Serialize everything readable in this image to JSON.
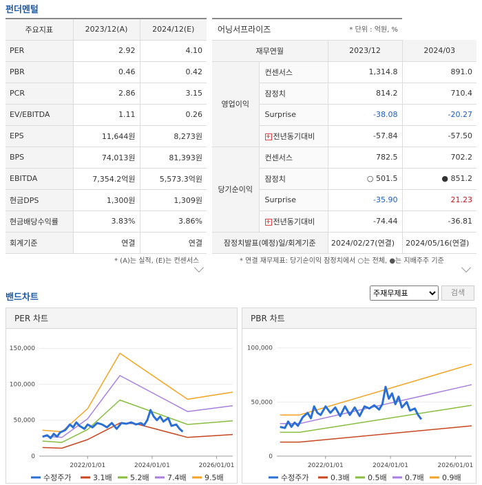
{
  "sections": {
    "fundamental": "펀더멘털",
    "band_chart": "밴드차트"
  },
  "indicators": {
    "headers": [
      "주요지표",
      "2023/12(A)",
      "2024/12(E)"
    ],
    "rows": [
      {
        "label": "PER",
        "v1": "2.92",
        "v2": "4.10"
      },
      {
        "label": "PBR",
        "v1": "0.46",
        "v2": "0.42"
      },
      {
        "label": "PCR",
        "v1": "2.86",
        "v2": "3.15"
      },
      {
        "label": "EV/EBITDA",
        "v1": "1.11",
        "v2": "0.26"
      },
      {
        "label": "EPS",
        "v1": "11,644원",
        "v2": "8,273원"
      },
      {
        "label": "BPS",
        "v1": "74,013원",
        "v2": "81,393원"
      },
      {
        "label": "EBITDA",
        "v1": "7,354.2억원",
        "v2": "5,573.3억원"
      },
      {
        "label": "현금DPS",
        "v1": "1,300원",
        "v2": "1,309원"
      },
      {
        "label": "현금배당수익률",
        "v1": "3.83%",
        "v2": "3.86%"
      },
      {
        "label": "회계기준",
        "v1": "연결",
        "v2": "연결"
      }
    ],
    "note": "* (A)는 실적, (E)는 컨센서스"
  },
  "earnings": {
    "title": "어닝서프라이즈",
    "unit": "* 단위 : 억원, %",
    "headers": [
      "재무연월",
      "2023/12",
      "2024/03"
    ],
    "groups": [
      {
        "name": "영업이익",
        "rows": [
          {
            "label": "컨센서스",
            "v1": "1,314.8",
            "v2": "891.0"
          },
          {
            "label": "잠정치",
            "v1": "814.2",
            "v2": "710.4"
          },
          {
            "label": "Surprise",
            "v1": "-38.08",
            "v2": "-20.27"
          },
          {
            "label": "전년동기대비",
            "v1": "-57.84",
            "v2": "-57.50"
          }
        ]
      },
      {
        "name": "당기순이익",
        "rows": [
          {
            "label": "컨센서스",
            "v1": "782.5",
            "v2": "702.2"
          },
          {
            "label": "잠정치",
            "v1": "○ 501.5",
            "v2": "● 851.2"
          },
          {
            "label": "Surprise",
            "v1": "-35.90",
            "v2": "21.23"
          },
          {
            "label": "전년동기대비",
            "v1": "-74.44",
            "v2": "-36.81"
          }
        ]
      }
    ],
    "footer": {
      "label": "잠정치발표(예정)일/회계기준",
      "v1": "2024/02/27(연결)",
      "v2": "2024/05/16(연결)"
    },
    "note": "* 연결 재무제표: 당기순이익 잠정치에서 ○는 전체, ●는 지배주주 기준"
  },
  "controls": {
    "select_value": "주재무제표",
    "search_label": "검색"
  },
  "chart_data": [
    {
      "type": "line",
      "title": "PER 차트",
      "x_ticks": [
        "2022/01/01",
        "2024/01/01",
        "2026/01/01"
      ],
      "y_ticks": [
        "150,000",
        "100,000",
        "50,000",
        "0"
      ],
      "ylim": [
        0,
        155000
      ],
      "x_range": [
        2020.5,
        2026.5
      ],
      "series": [
        {
          "name": "수정주가",
          "color": "#2a6fd6",
          "width": 3,
          "points": [
            [
              2020.6,
              27000
            ],
            [
              2020.75,
              29000
            ],
            [
              2020.85,
              25000
            ],
            [
              2020.95,
              31000
            ],
            [
              2021.05,
              27000
            ],
            [
              2021.15,
              33000
            ],
            [
              2021.3,
              36000
            ],
            [
              2021.45,
              44000
            ],
            [
              2021.55,
              40000
            ],
            [
              2021.65,
              47000
            ],
            [
              2021.75,
              42000
            ],
            [
              2021.9,
              38000
            ],
            [
              2022.0,
              44000
            ],
            [
              2022.15,
              40000
            ],
            [
              2022.3,
              46000
            ],
            [
              2022.45,
              44000
            ],
            [
              2022.6,
              40000
            ],
            [
              2022.75,
              46000
            ],
            [
              2022.9,
              38000
            ],
            [
              2023.05,
              46000
            ],
            [
              2023.2,
              45000
            ],
            [
              2023.35,
              47000
            ],
            [
              2023.5,
              44000
            ],
            [
              2023.65,
              46000
            ],
            [
              2023.75,
              43000
            ],
            [
              2023.85,
              50000
            ],
            [
              2023.95,
              64000
            ],
            [
              2024.05,
              55000
            ],
            [
              2024.15,
              50000
            ],
            [
              2024.25,
              55000
            ],
            [
              2024.35,
              48000
            ],
            [
              2024.5,
              53000
            ],
            [
              2024.6,
              42000
            ],
            [
              2024.75,
              44000
            ],
            [
              2024.85,
              38000
            ],
            [
              2024.95,
              34000
            ]
          ]
        },
        {
          "name": "3.1배",
          "color": "#c8451e",
          "width": 1.5,
          "points": [
            [
              2020.6,
              12000
            ],
            [
              2021.2,
              11000
            ],
            [
              2022.0,
              23000
            ],
            [
              2023.0,
              46000
            ],
            [
              2023.5,
              45000
            ],
            [
              2025.1,
              26000
            ],
            [
              2026.5,
              30000
            ]
          ]
        },
        {
          "name": "5.2배",
          "color": "#86be3c",
          "width": 1.5,
          "points": [
            [
              2020.6,
              21000
            ],
            [
              2021.2,
              19000
            ],
            [
              2022.0,
              37000
            ],
            [
              2023.0,
              78000
            ],
            [
              2025.1,
              44000
            ],
            [
              2026.5,
              49000
            ]
          ]
        },
        {
          "name": "7.4배",
          "color": "#a87ee0",
          "width": 1.5,
          "points": [
            [
              2020.6,
              28000
            ],
            [
              2021.2,
              26000
            ],
            [
              2022.0,
              52000
            ],
            [
              2023.0,
              112000
            ],
            [
              2025.1,
              62000
            ],
            [
              2026.5,
              70000
            ]
          ]
        },
        {
          "name": "9.5배",
          "color": "#f4a321",
          "width": 1.5,
          "points": [
            [
              2020.6,
              36000
            ],
            [
              2021.2,
              34000
            ],
            [
              2022.0,
              66000
            ],
            [
              2023.0,
              143000
            ],
            [
              2025.1,
              79000
            ],
            [
              2026.5,
              89000
            ]
          ]
        }
      ]
    },
    {
      "type": "line",
      "title": "PBR 차트",
      "x_ticks": [
        "2022/01/01",
        "2024/01/01",
        "2026/01/01"
      ],
      "y_ticks": [
        "100,000",
        "50,000",
        "0"
      ],
      "ylim": [
        0,
        103000
      ],
      "x_range": [
        2020.5,
        2026.5
      ],
      "series": [
        {
          "name": "수정주가",
          "color": "#2a6fd6",
          "width": 3,
          "points": [
            [
              2020.6,
              27000
            ],
            [
              2020.75,
              26000
            ],
            [
              2020.85,
              32000
            ],
            [
              2020.95,
              27000
            ],
            [
              2021.05,
              31000
            ],
            [
              2021.15,
              28000
            ],
            [
              2021.3,
              36000
            ],
            [
              2021.45,
              40000
            ],
            [
              2021.55,
              35000
            ],
            [
              2021.65,
              46000
            ],
            [
              2021.75,
              40000
            ],
            [
              2021.85,
              38000
            ],
            [
              2022.0,
              46000
            ],
            [
              2022.15,
              40000
            ],
            [
              2022.3,
              45000
            ],
            [
              2022.45,
              37000
            ],
            [
              2022.6,
              46000
            ],
            [
              2022.75,
              38000
            ],
            [
              2022.9,
              45000
            ],
            [
              2023.05,
              37000
            ],
            [
              2023.2,
              46000
            ],
            [
              2023.35,
              44000
            ],
            [
              2023.5,
              47000
            ],
            [
              2023.65,
              43000
            ],
            [
              2023.75,
              48000
            ],
            [
              2023.85,
              64000
            ],
            [
              2023.95,
              53000
            ],
            [
              2024.05,
              58000
            ],
            [
              2024.15,
              48000
            ],
            [
              2024.25,
              55000
            ],
            [
              2024.35,
              45000
            ],
            [
              2024.5,
              50000
            ],
            [
              2024.6,
              42000
            ],
            [
              2024.75,
              44000
            ],
            [
              2024.85,
              38000
            ],
            [
              2024.95,
              34000
            ]
          ]
        },
        {
          "name": "0.3배",
          "color": "#c8451e",
          "width": 1.5,
          "points": [
            [
              2020.6,
              13000
            ],
            [
              2021.2,
              13000
            ],
            [
              2026.5,
              28000
            ]
          ]
        },
        {
          "name": "0.5배",
          "color": "#86be3c",
          "width": 1.5,
          "points": [
            [
              2020.6,
              22000
            ],
            [
              2021.2,
              22000
            ],
            [
              2026.5,
              47000
            ]
          ]
        },
        {
          "name": "0.7배",
          "color": "#a87ee0",
          "width": 1.5,
          "points": [
            [
              2020.6,
              30000
            ],
            [
              2021.2,
              30000
            ],
            [
              2026.5,
              66000
            ]
          ]
        },
        {
          "name": "0.9배",
          "color": "#f4a321",
          "width": 1.5,
          "points": [
            [
              2020.6,
              38000
            ],
            [
              2021.2,
              38000
            ],
            [
              2026.5,
              85000
            ]
          ]
        }
      ]
    }
  ]
}
